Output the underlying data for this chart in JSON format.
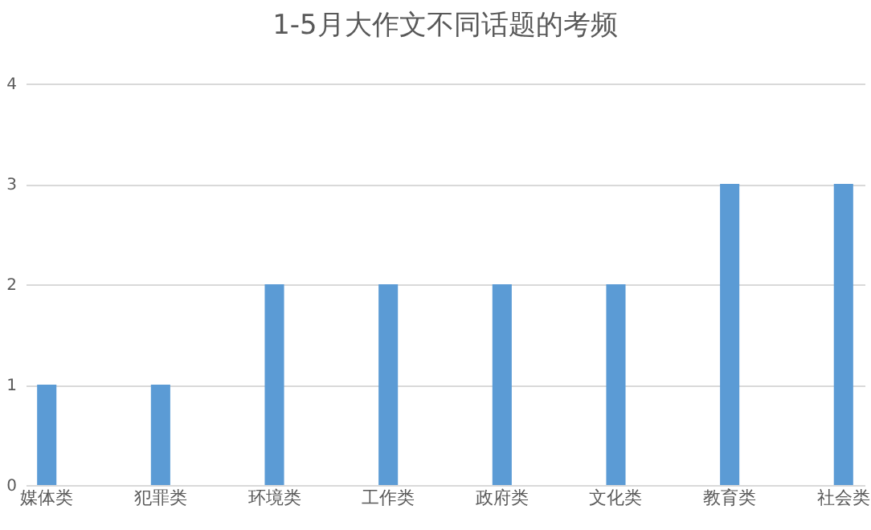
{
  "chart_data": {
    "type": "bar",
    "title": "1-5月大作文不同话题的考频",
    "categories": [
      "媒体类",
      "犯罪类",
      "环境类",
      "工作类",
      "政府类",
      "文化类",
      "教育类",
      "社会类"
    ],
    "values": [
      1,
      1,
      2,
      2,
      2,
      2,
      3,
      3
    ],
    "color": "#5b9bd5",
    "ylim": [
      0,
      4
    ],
    "yticks": [
      0,
      1,
      2,
      3,
      4
    ],
    "grid": "y"
  }
}
